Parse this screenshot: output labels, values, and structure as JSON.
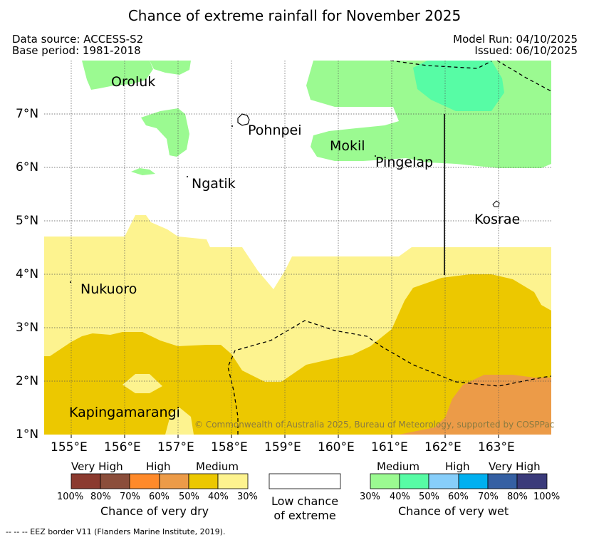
{
  "header": {
    "title": "Chance of extreme rainfall for November 2025",
    "data_source": "Data source: ACCESS-S2",
    "base_period": "Base period: 1981-2018",
    "model_run": "Model Run: 04/10/2025",
    "issued": "Issued: 06/10/2025"
  },
  "map": {
    "lat_ticks": [
      "7°N",
      "6°N",
      "5°N",
      "4°N",
      "3°N",
      "2°N",
      "1°N"
    ],
    "lon_ticks": [
      "155°E",
      "156°E",
      "157°E",
      "158°E",
      "159°E",
      "160°E",
      "161°E",
      "162°E",
      "163°E"
    ],
    "places": {
      "oroluk": "Oroluk",
      "pohnpei": "Pohnpei",
      "mokil": "Mokil",
      "pingelap": "Pingelap",
      "ngatik": "Ngatik",
      "kosrae": "Kosrae",
      "nukuoro": "Nukuoro",
      "kapingamarangi": "Kapingamarangi"
    },
    "copyright": "© Commonwealth of Australia 2025, Bureau of Meteorology, supported by COSPPac"
  },
  "legend": {
    "dry": {
      "categories": [
        "Very High",
        "High",
        "Medium"
      ],
      "ticks": [
        "100%",
        "80%",
        "70%",
        "60%",
        "50%",
        "40%",
        "30%"
      ],
      "colors": [
        "#8b3a2f",
        "#8b4e3b",
        "#ff8a2a",
        "#ec9b48",
        "#ecc800",
        "#fdf38f"
      ],
      "label": "Chance of very dry"
    },
    "neutral": {
      "label_line1": "Low chance",
      "label_line2": "of extreme",
      "color": "#ffffff"
    },
    "wet": {
      "categories": [
        "Medium",
        "High",
        "Very High"
      ],
      "ticks": [
        "30%",
        "40%",
        "50%",
        "60%",
        "70%",
        "80%",
        "100%"
      ],
      "colors": [
        "#9bfa91",
        "#57fca5",
        "#87cefa",
        "#00b0f0",
        "#3560a3",
        "#3a3a7a"
      ],
      "label": "Chance of very wet"
    }
  },
  "footnote": "-- -- -- EEZ border V11 (Flanders Marine Institute, 2019)."
}
